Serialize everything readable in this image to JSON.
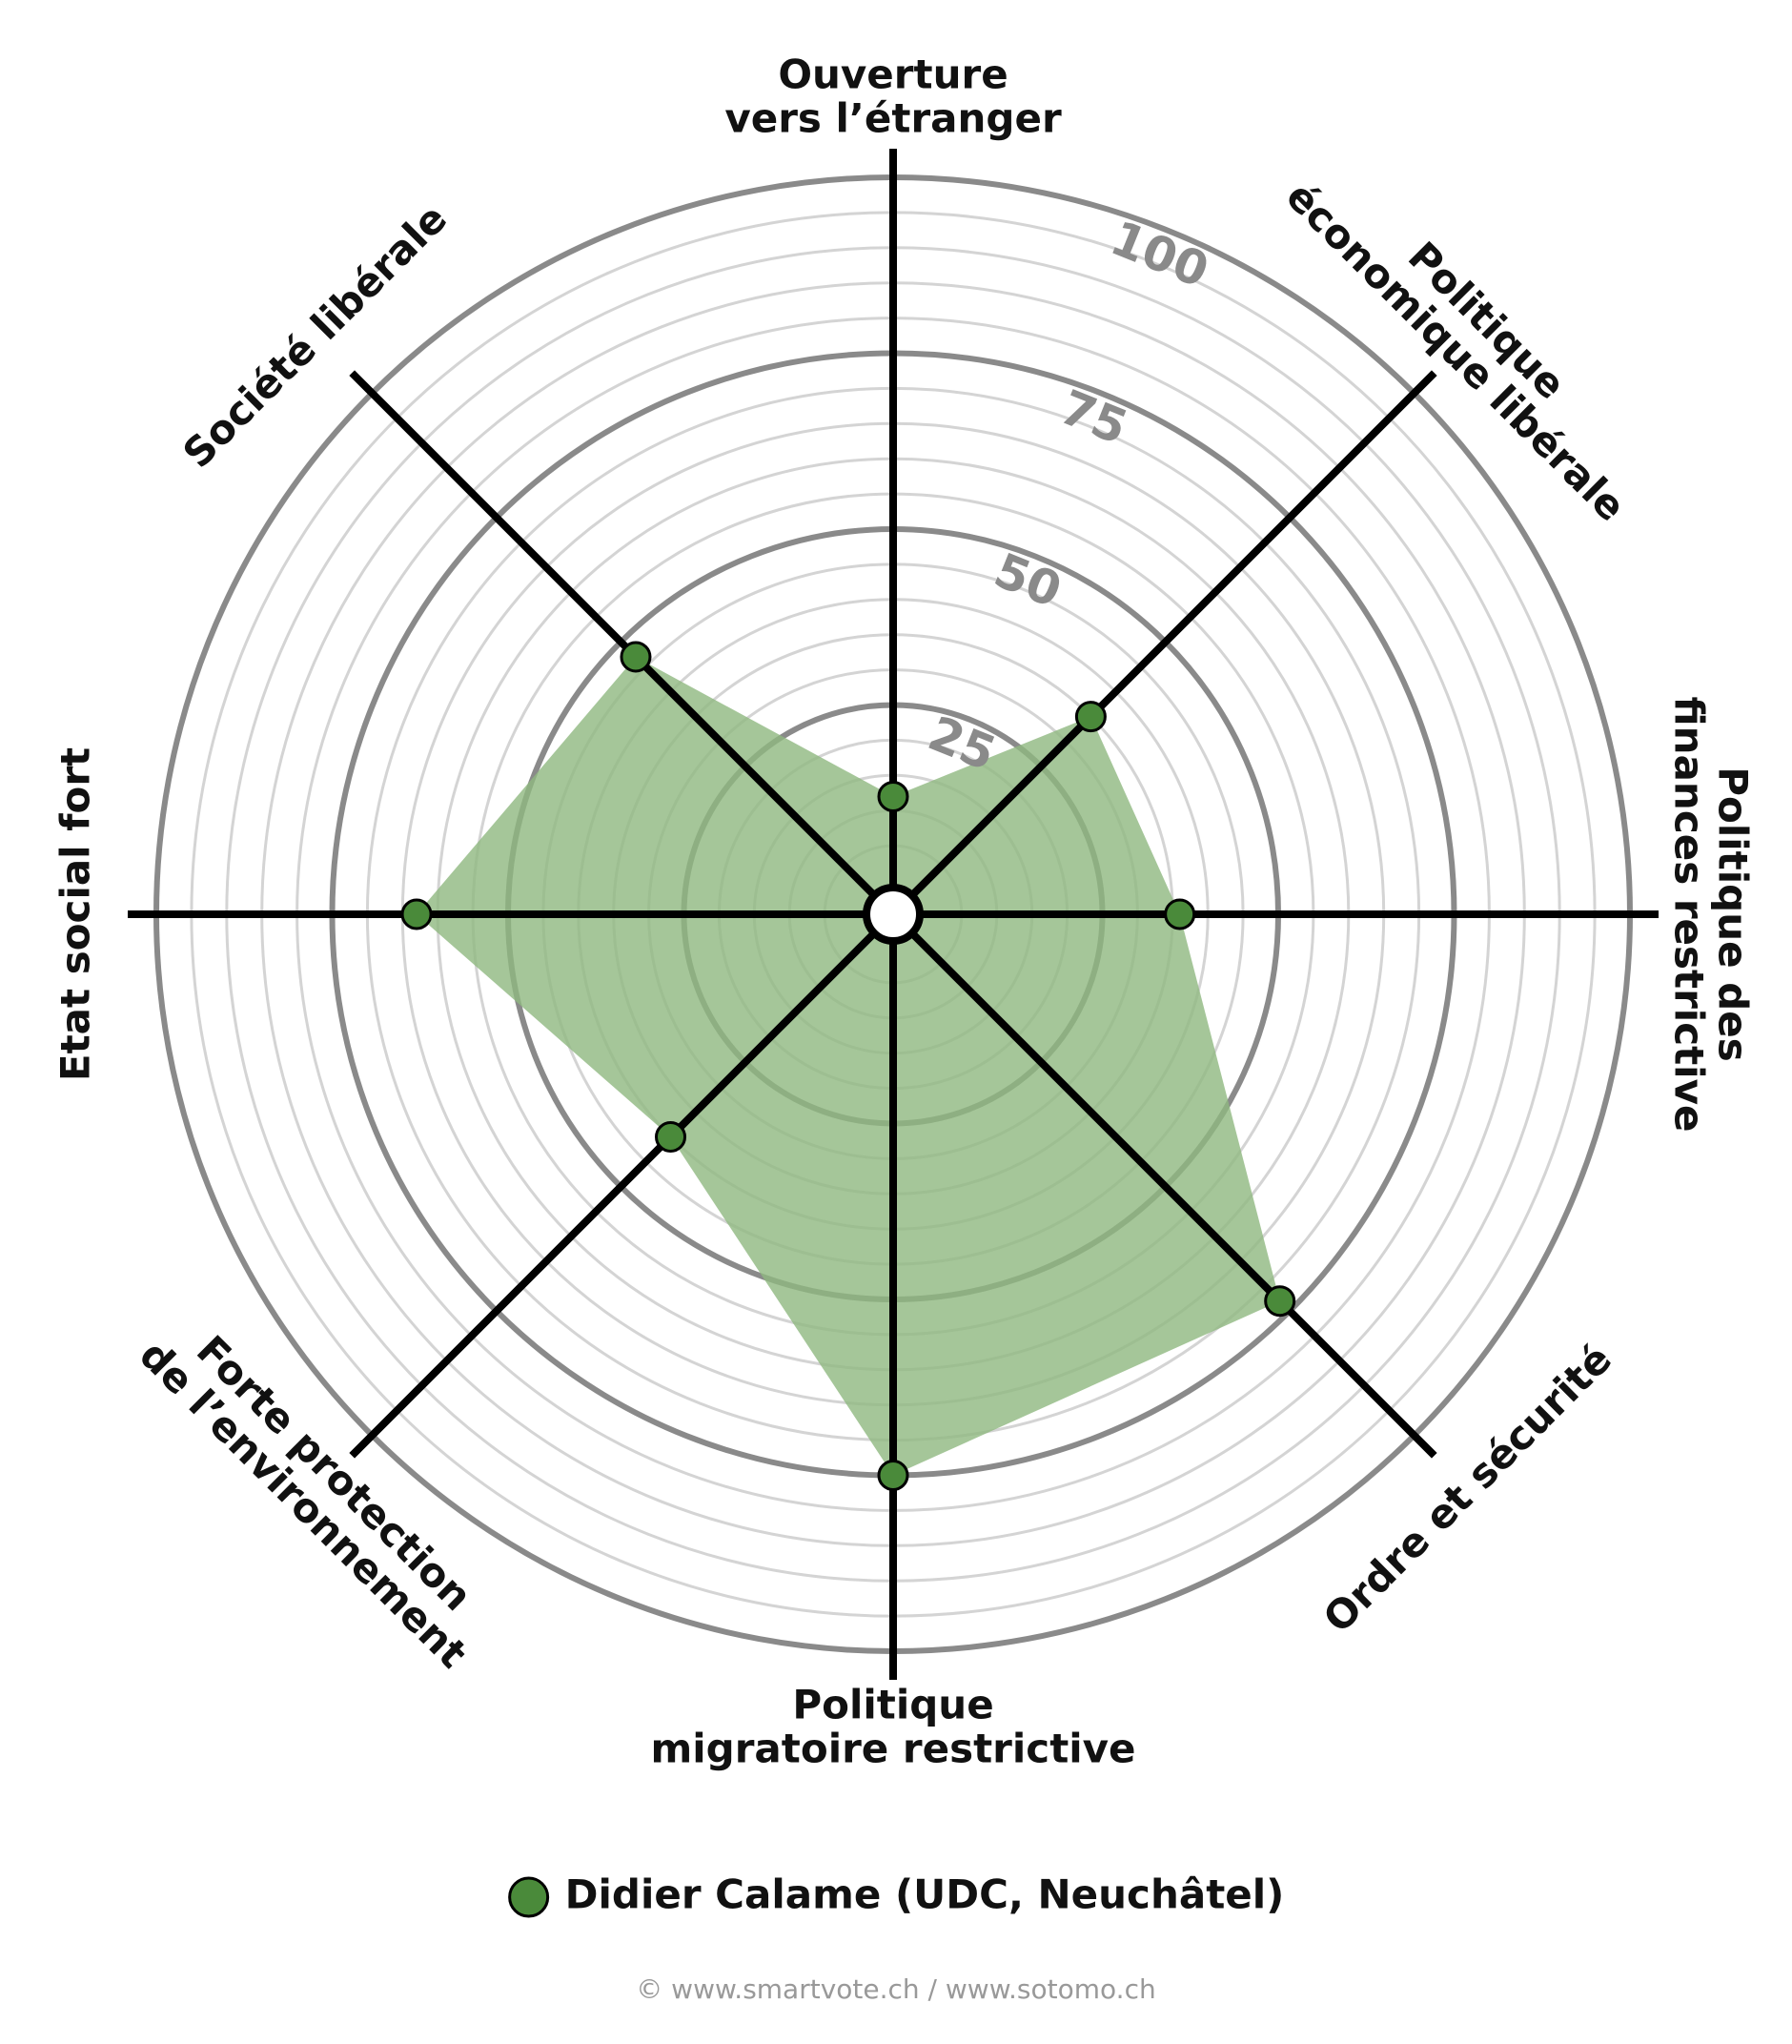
{
  "chart_data": {
    "type": "radar",
    "categories": [
      [
        "Ouverture",
        "vers l’étranger"
      ],
      [
        "Politique",
        "économique libérale"
      ],
      [
        "Politique des",
        "finances restrictive"
      ],
      [
        "Ordre et sécurité"
      ],
      [
        "Politique",
        "migratoire restrictive"
      ],
      [
        "Forte protection",
        "de l’environnement"
      ],
      [
        "Etat social fort"
      ],
      [
        "Société libérale"
      ]
    ],
    "series": [
      {
        "name": "Didier Calame (UDC, Neuchâtel)",
        "color": "#4a8a3a",
        "fill": "#8fb87f",
        "values": [
          12,
          35,
          36,
          73,
          75,
          40,
          63,
          47
        ]
      }
    ],
    "rlim": [
      0,
      100
    ],
    "rticks": [
      25,
      50,
      75,
      100
    ],
    "minor_step": 5,
    "source": "© www.smartvote.ch / www.sotomo.ch"
  }
}
